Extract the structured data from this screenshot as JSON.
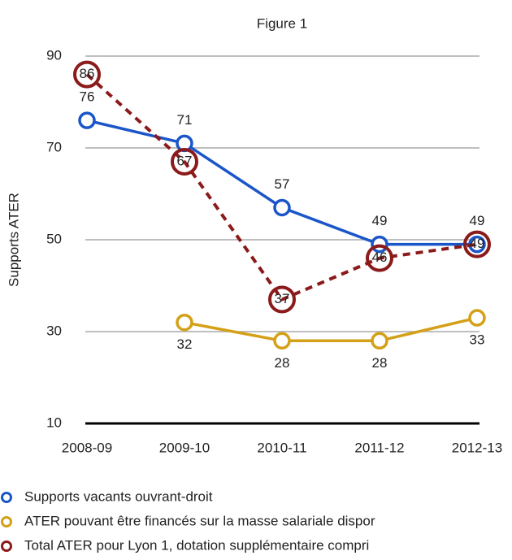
{
  "chart_data": {
    "type": "line",
    "title": "Figure 1",
    "y_label": "Supports ATER",
    "categories": [
      "2008-09",
      "2009-10",
      "2010-11",
      "2011-12",
      "2012-13"
    ],
    "ylim": [
      10,
      90
    ],
    "yticks": [
      10,
      30,
      50,
      70,
      90
    ],
    "grid": true,
    "legend": "bottom",
    "series": [
      {
        "name": "Supports vacants ouvrant-droit",
        "color": "#1a56c8",
        "line_style": "solid",
        "label_position": "above",
        "values": [
          76,
          71,
          57,
          49,
          49
        ]
      },
      {
        "name": "ATER pouvant être financés sur la masse salariale dispor",
        "color": "#d4a017",
        "line_style": "solid",
        "label_position": "below",
        "values": [
          null,
          32,
          28,
          28,
          33
        ]
      },
      {
        "name": "Total ATER pour Lyon 1, dotation supplémentaire compri",
        "color": "#8b1a1a",
        "line_style": "dashed",
        "label_position": "inside",
        "values": [
          86,
          67,
          37,
          46,
          49
        ]
      }
    ]
  }
}
